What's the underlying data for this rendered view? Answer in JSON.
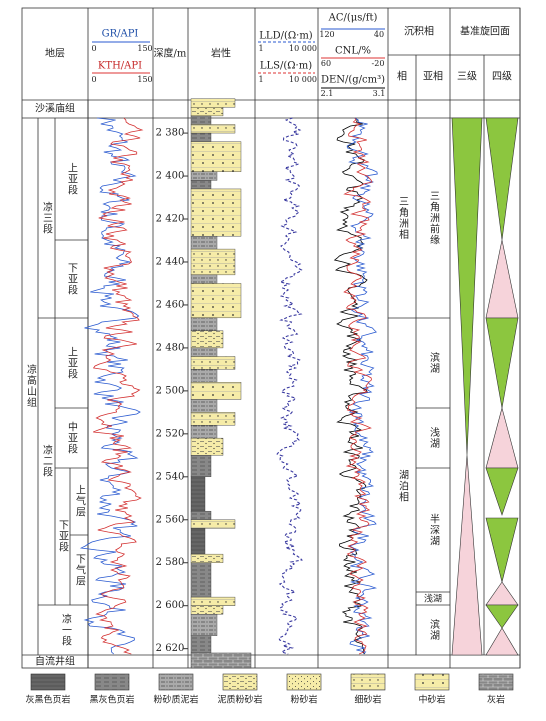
{
  "header": {
    "strata": "地层",
    "gr": "GR/API",
    "gr_min": "0",
    "gr_max": "150",
    "kth": "KTH/API",
    "kth_min": "0",
    "kth_max": "150",
    "depth": "深度/m",
    "lithology": "岩性",
    "lld": "LLD/(Ω·m)",
    "lld_min": "1",
    "lld_max": "10 000",
    "lls": "LLS/(Ω·m)",
    "lls_min": "1",
    "lls_max": "10 000",
    "ac": "AC/(μs/ft)",
    "ac_min": "120",
    "ac_max": "40",
    "cnl": "CNL/%",
    "cnl_min": "60",
    "cnl_max": "-20",
    "den": "DEN/(g/cm³)",
    "den_min": "2.1",
    "den_max": "3.1",
    "facies": "沉积相",
    "facies_main": "相",
    "facies_sub": "亚相",
    "cycle": "基准旋回面",
    "cycle3": "三级",
    "cycle4": "四级"
  },
  "strata": {
    "top": "沙溪庙组",
    "bottom": "自流井组",
    "formation": "凉高山组",
    "members": [
      "凉三段",
      "凉二段",
      "凉一段"
    ],
    "submembers": [
      "上亚段",
      "下亚段",
      "上亚段",
      "中亚段",
      "下亚段"
    ],
    "layers": [
      "上气层",
      "下气层"
    ]
  },
  "depth_ticks": [
    {
      "value": 2380,
      "label": "2 380"
    },
    {
      "value": 2400,
      "label": "2 400"
    },
    {
      "value": 2420,
      "label": "2 420"
    },
    {
      "value": 2440,
      "label": "2 440"
    },
    {
      "value": 2460,
      "label": "2 460"
    },
    {
      "value": 2480,
      "label": "2 480"
    },
    {
      "value": 2500,
      "label": "2 500"
    },
    {
      "value": 2520,
      "label": "2 520"
    },
    {
      "value": 2540,
      "label": "2 540"
    },
    {
      "value": 2560,
      "label": "2 560"
    },
    {
      "value": 2580,
      "label": "2 580"
    },
    {
      "value": 2600,
      "label": "2 600"
    },
    {
      "value": 2620,
      "label": "2 620"
    }
  ],
  "depth_range": [
    2364.6,
    2629
  ],
  "lithology_intervals": [
    [
      2364,
      2368,
      5
    ],
    [
      2368,
      2372,
      3
    ],
    [
      2372,
      2376,
      1
    ],
    [
      2376,
      2380,
      5
    ],
    [
      2380,
      2384,
      1
    ],
    [
      2384,
      2398,
      6
    ],
    [
      2398,
      2402,
      2
    ],
    [
      2402,
      2406,
      1
    ],
    [
      2406,
      2428,
      6
    ],
    [
      2428,
      2434,
      2
    ],
    [
      2434,
      2446,
      5
    ],
    [
      2446,
      2450,
      2
    ],
    [
      2450,
      2466,
      6
    ],
    [
      2466,
      2472,
      2
    ],
    [
      2472,
      2480,
      3
    ],
    [
      2480,
      2484,
      2
    ],
    [
      2484,
      2490,
      5
    ],
    [
      2490,
      2496,
      2
    ],
    [
      2496,
      2504,
      6
    ],
    [
      2504,
      2510,
      2
    ],
    [
      2510,
      2516,
      5
    ],
    [
      2516,
      2522,
      2
    ],
    [
      2522,
      2530,
      3
    ],
    [
      2530,
      2540,
      1
    ],
    [
      2540,
      2556,
      0
    ],
    [
      2556,
      2560,
      1
    ],
    [
      2560,
      2564,
      5
    ],
    [
      2564,
      2576,
      0
    ],
    [
      2576,
      2580,
      3
    ],
    [
      2580,
      2596,
      1
    ],
    [
      2596,
      2600,
      5
    ],
    [
      2600,
      2604,
      3
    ],
    [
      2604,
      2614,
      2
    ],
    [
      2614,
      2622,
      1
    ],
    [
      2622,
      2629,
      7
    ]
  ],
  "facies": {
    "main": [
      "三角洲相",
      "湖泊相"
    ],
    "sub": [
      "三角洲前缘",
      "滨湖",
      "浅湖",
      "半深湖",
      "浅湖",
      "滨湖"
    ]
  },
  "legend": [
    "灰黑色页岩",
    "黑灰色页岩",
    "粉砂质泥岩",
    "泥质粉砂岩",
    "粉砂岩",
    "细砂岩",
    "中砂岩",
    "灰岩"
  ]
}
